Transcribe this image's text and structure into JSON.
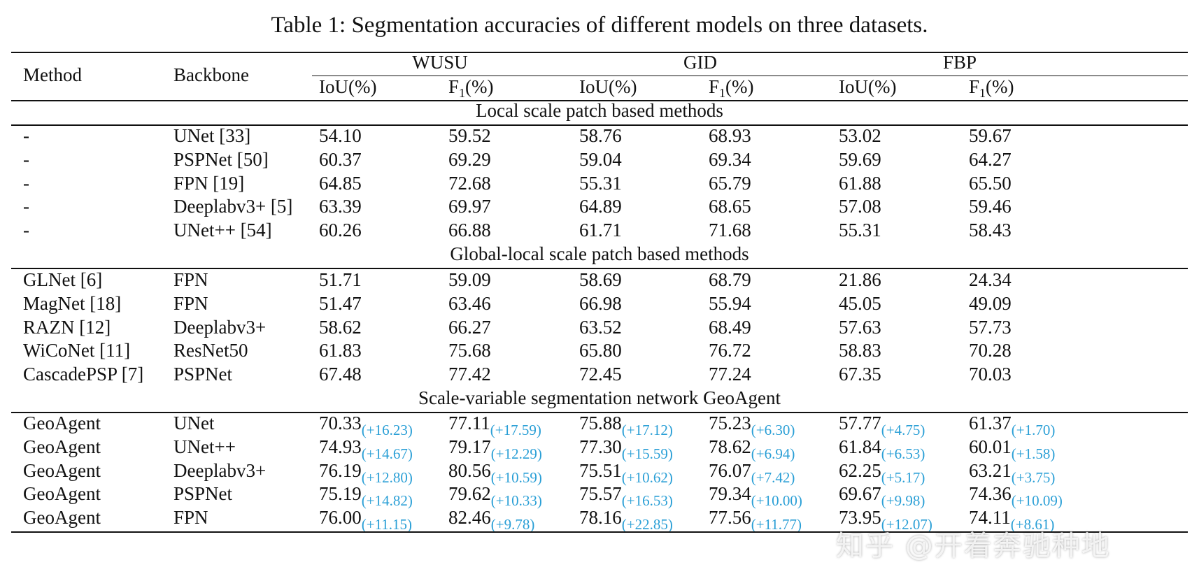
{
  "caption": "Table 1: Segmentation accuracies of different models on three datasets.",
  "headers": {
    "method": "Method",
    "backbone": "Backbone",
    "datasets": [
      "WUSU",
      "GID",
      "FBP"
    ],
    "iou": "IoU(%)",
    "f1_prefix": "F",
    "f1_sub": "1",
    "f1_suffix": "(%)"
  },
  "sections": [
    {
      "title": "Local scale patch based methods",
      "rows": [
        {
          "method": "-",
          "backbone": "UNet [33]",
          "values": [
            "54.10",
            "59.52",
            "58.76",
            "68.93",
            "53.02",
            "59.67"
          ]
        },
        {
          "method": "-",
          "backbone": "PSPNet [50]",
          "values": [
            "60.37",
            "69.29",
            "59.04",
            "69.34",
            "59.69",
            "64.27"
          ]
        },
        {
          "method": "-",
          "backbone": "FPN [19]",
          "values": [
            "64.85",
            "72.68",
            "55.31",
            "65.79",
            "61.88",
            "65.50"
          ]
        },
        {
          "method": "-",
          "backbone": "Deeplabv3+ [5]",
          "values": [
            "63.39",
            "69.97",
            "64.89",
            "68.65",
            "57.08",
            "59.46"
          ]
        },
        {
          "method": "-",
          "backbone": "UNet++ [54]",
          "values": [
            "60.26",
            "66.88",
            "61.71",
            "71.68",
            "55.31",
            "58.43"
          ]
        }
      ]
    },
    {
      "title": "Global-local scale patch based methods",
      "rows": [
        {
          "method": "GLNet [6]",
          "backbone": "FPN",
          "values": [
            "51.71",
            "59.09",
            "58.69",
            "68.79",
            "21.86",
            "24.34"
          ]
        },
        {
          "method": "MagNet [18]",
          "backbone": "FPN",
          "values": [
            "51.47",
            "63.46",
            "66.98",
            "55.94",
            "45.05",
            "49.09"
          ]
        },
        {
          "method": "RAZN [12]",
          "backbone": "Deeplabv3+",
          "values": [
            "58.62",
            "66.27",
            "63.52",
            "68.49",
            "57.63",
            "57.73"
          ]
        },
        {
          "method": "WiCoNet [11]",
          "backbone": "ResNet50",
          "values": [
            "61.83",
            "75.68",
            "65.80",
            "76.72",
            "58.83",
            "70.28"
          ]
        },
        {
          "method": "CascadePSP [7]",
          "backbone": "PSPNet",
          "values": [
            "67.48",
            "77.42",
            "72.45",
            "77.24",
            "67.35",
            "70.03"
          ]
        }
      ]
    },
    {
      "title": "Scale-variable segmentation network GeoAgent",
      "rows": [
        {
          "method": "GeoAgent",
          "backbone": "UNet",
          "values": [
            "70.33",
            "77.11",
            "75.88",
            "75.23",
            "57.77",
            "61.37"
          ],
          "deltas": [
            "(+16.23)",
            "(+17.59)",
            "(+17.12)",
            "(+6.30)",
            "(+4.75)",
            "(+1.70)"
          ]
        },
        {
          "method": "GeoAgent",
          "backbone": "UNet++",
          "values": [
            "74.93",
            "79.17",
            "77.30",
            "78.62",
            "61.84",
            "60.01"
          ],
          "deltas": [
            "(+14.67)",
            "(+12.29)",
            "(+15.59)",
            "(+6.94)",
            "(+6.53)",
            "(+1.58)"
          ]
        },
        {
          "method": "GeoAgent",
          "backbone": "Deeplabv3+",
          "values": [
            "76.19",
            "80.56",
            "75.51",
            "76.07",
            "62.25",
            "63.21"
          ],
          "deltas": [
            "(+12.80)",
            "(+10.59)",
            "(+10.62)",
            "(+7.42)",
            "(+5.17)",
            "(+3.75)"
          ]
        },
        {
          "method": "GeoAgent",
          "backbone": "PSPNet",
          "values": [
            "75.19",
            "79.62",
            "75.57",
            "79.34",
            "69.67",
            "74.36"
          ],
          "deltas": [
            "(+14.82)",
            "(+10.33)",
            "(+16.53)",
            "(+10.00)",
            "(+9.98)",
            "(+10.09)"
          ]
        },
        {
          "method": "GeoAgent",
          "backbone": "FPN",
          "values": [
            "76.00",
            "82.46",
            "78.16",
            "77.56",
            "73.95",
            "74.11"
          ],
          "deltas": [
            "(+11.15)",
            "(+9.78)",
            "(+22.85)",
            "(+11.77)",
            "(+12.07)",
            "(+8.61)"
          ]
        }
      ]
    }
  ],
  "watermark": "知乎 @开着奔驰种地",
  "colors": {
    "delta": "#2a9fd6",
    "text": "#111111"
  }
}
